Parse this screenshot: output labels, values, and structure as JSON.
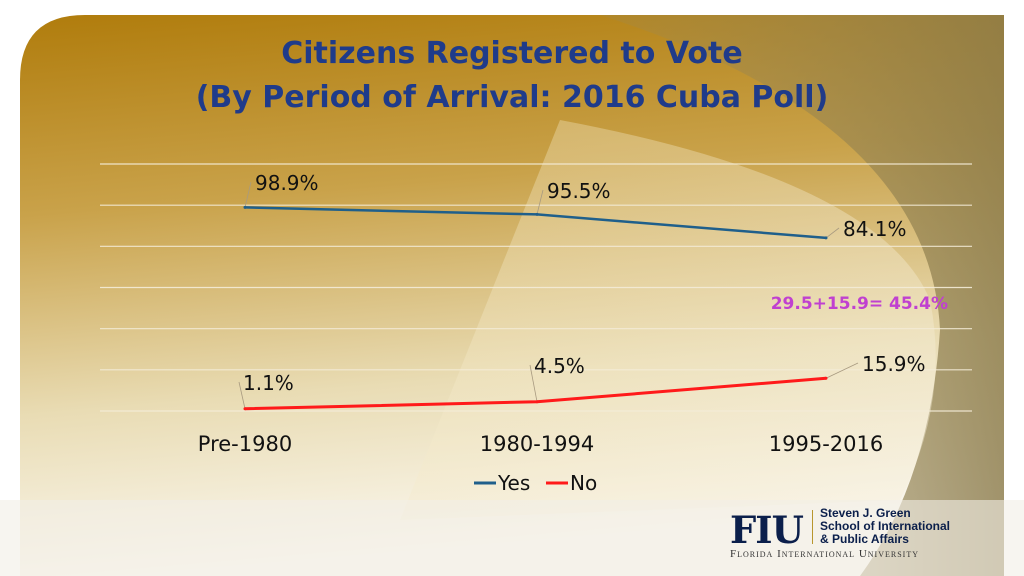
{
  "title_line1": "Citizens Registered to Vote",
  "title_line2": "(By Period of Arrival: 2016 Cuba Poll)",
  "annotation": "29.5+15.9= 45.4%",
  "logo": {
    "mark": "FIU",
    "school": [
      "Steven J. Green",
      "School of International",
      "& Public Affairs"
    ],
    "university": "Florida International University"
  },
  "colors": {
    "yes": "#1f5f8b",
    "no": "#ff1a1a",
    "title": "#1f3b8a",
    "annotation": "#c040d0"
  },
  "chart_data": {
    "type": "line",
    "title": "Citizens Registered to Vote (By Period of Arrival: 2016 Cuba Poll)",
    "categories": [
      "Pre-1980",
      "1980-1994",
      "1995-2016"
    ],
    "series": [
      {
        "name": "Yes",
        "values": [
          98.9,
          95.5,
          84.1
        ],
        "labels": [
          "98.9%",
          "95.5%",
          "84.1%"
        ]
      },
      {
        "name": "No",
        "values": [
          1.1,
          4.5,
          15.9
        ],
        "labels": [
          "1.1%",
          "4.5%",
          "15.9%"
        ]
      }
    ],
    "ylim": [
      0,
      120
    ],
    "grid": true,
    "legend": "bottom",
    "xlabel": "",
    "ylabel": ""
  }
}
